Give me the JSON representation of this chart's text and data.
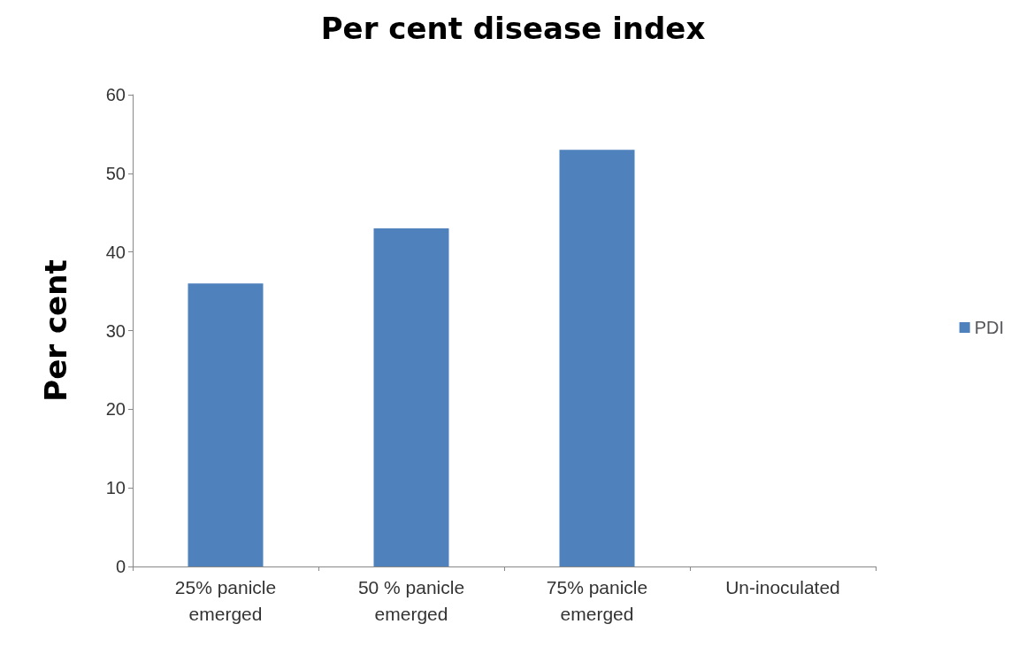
{
  "chart_data": {
    "type": "bar",
    "title": "Per cent disease index",
    "ylabel": "Per cent",
    "categories": [
      "25% panicle\nemerged",
      "50 % panicle\nemerged",
      "75% panicle\nemerged",
      "Un-inoculated"
    ],
    "series": [
      {
        "name": "PDI",
        "color": "#4f81bd",
        "values": [
          36,
          43,
          53,
          0
        ]
      }
    ],
    "ylim": [
      0,
      60
    ],
    "yticks": [
      0,
      10,
      20,
      30,
      40,
      50,
      60
    ],
    "grid": false,
    "legend": "right"
  }
}
